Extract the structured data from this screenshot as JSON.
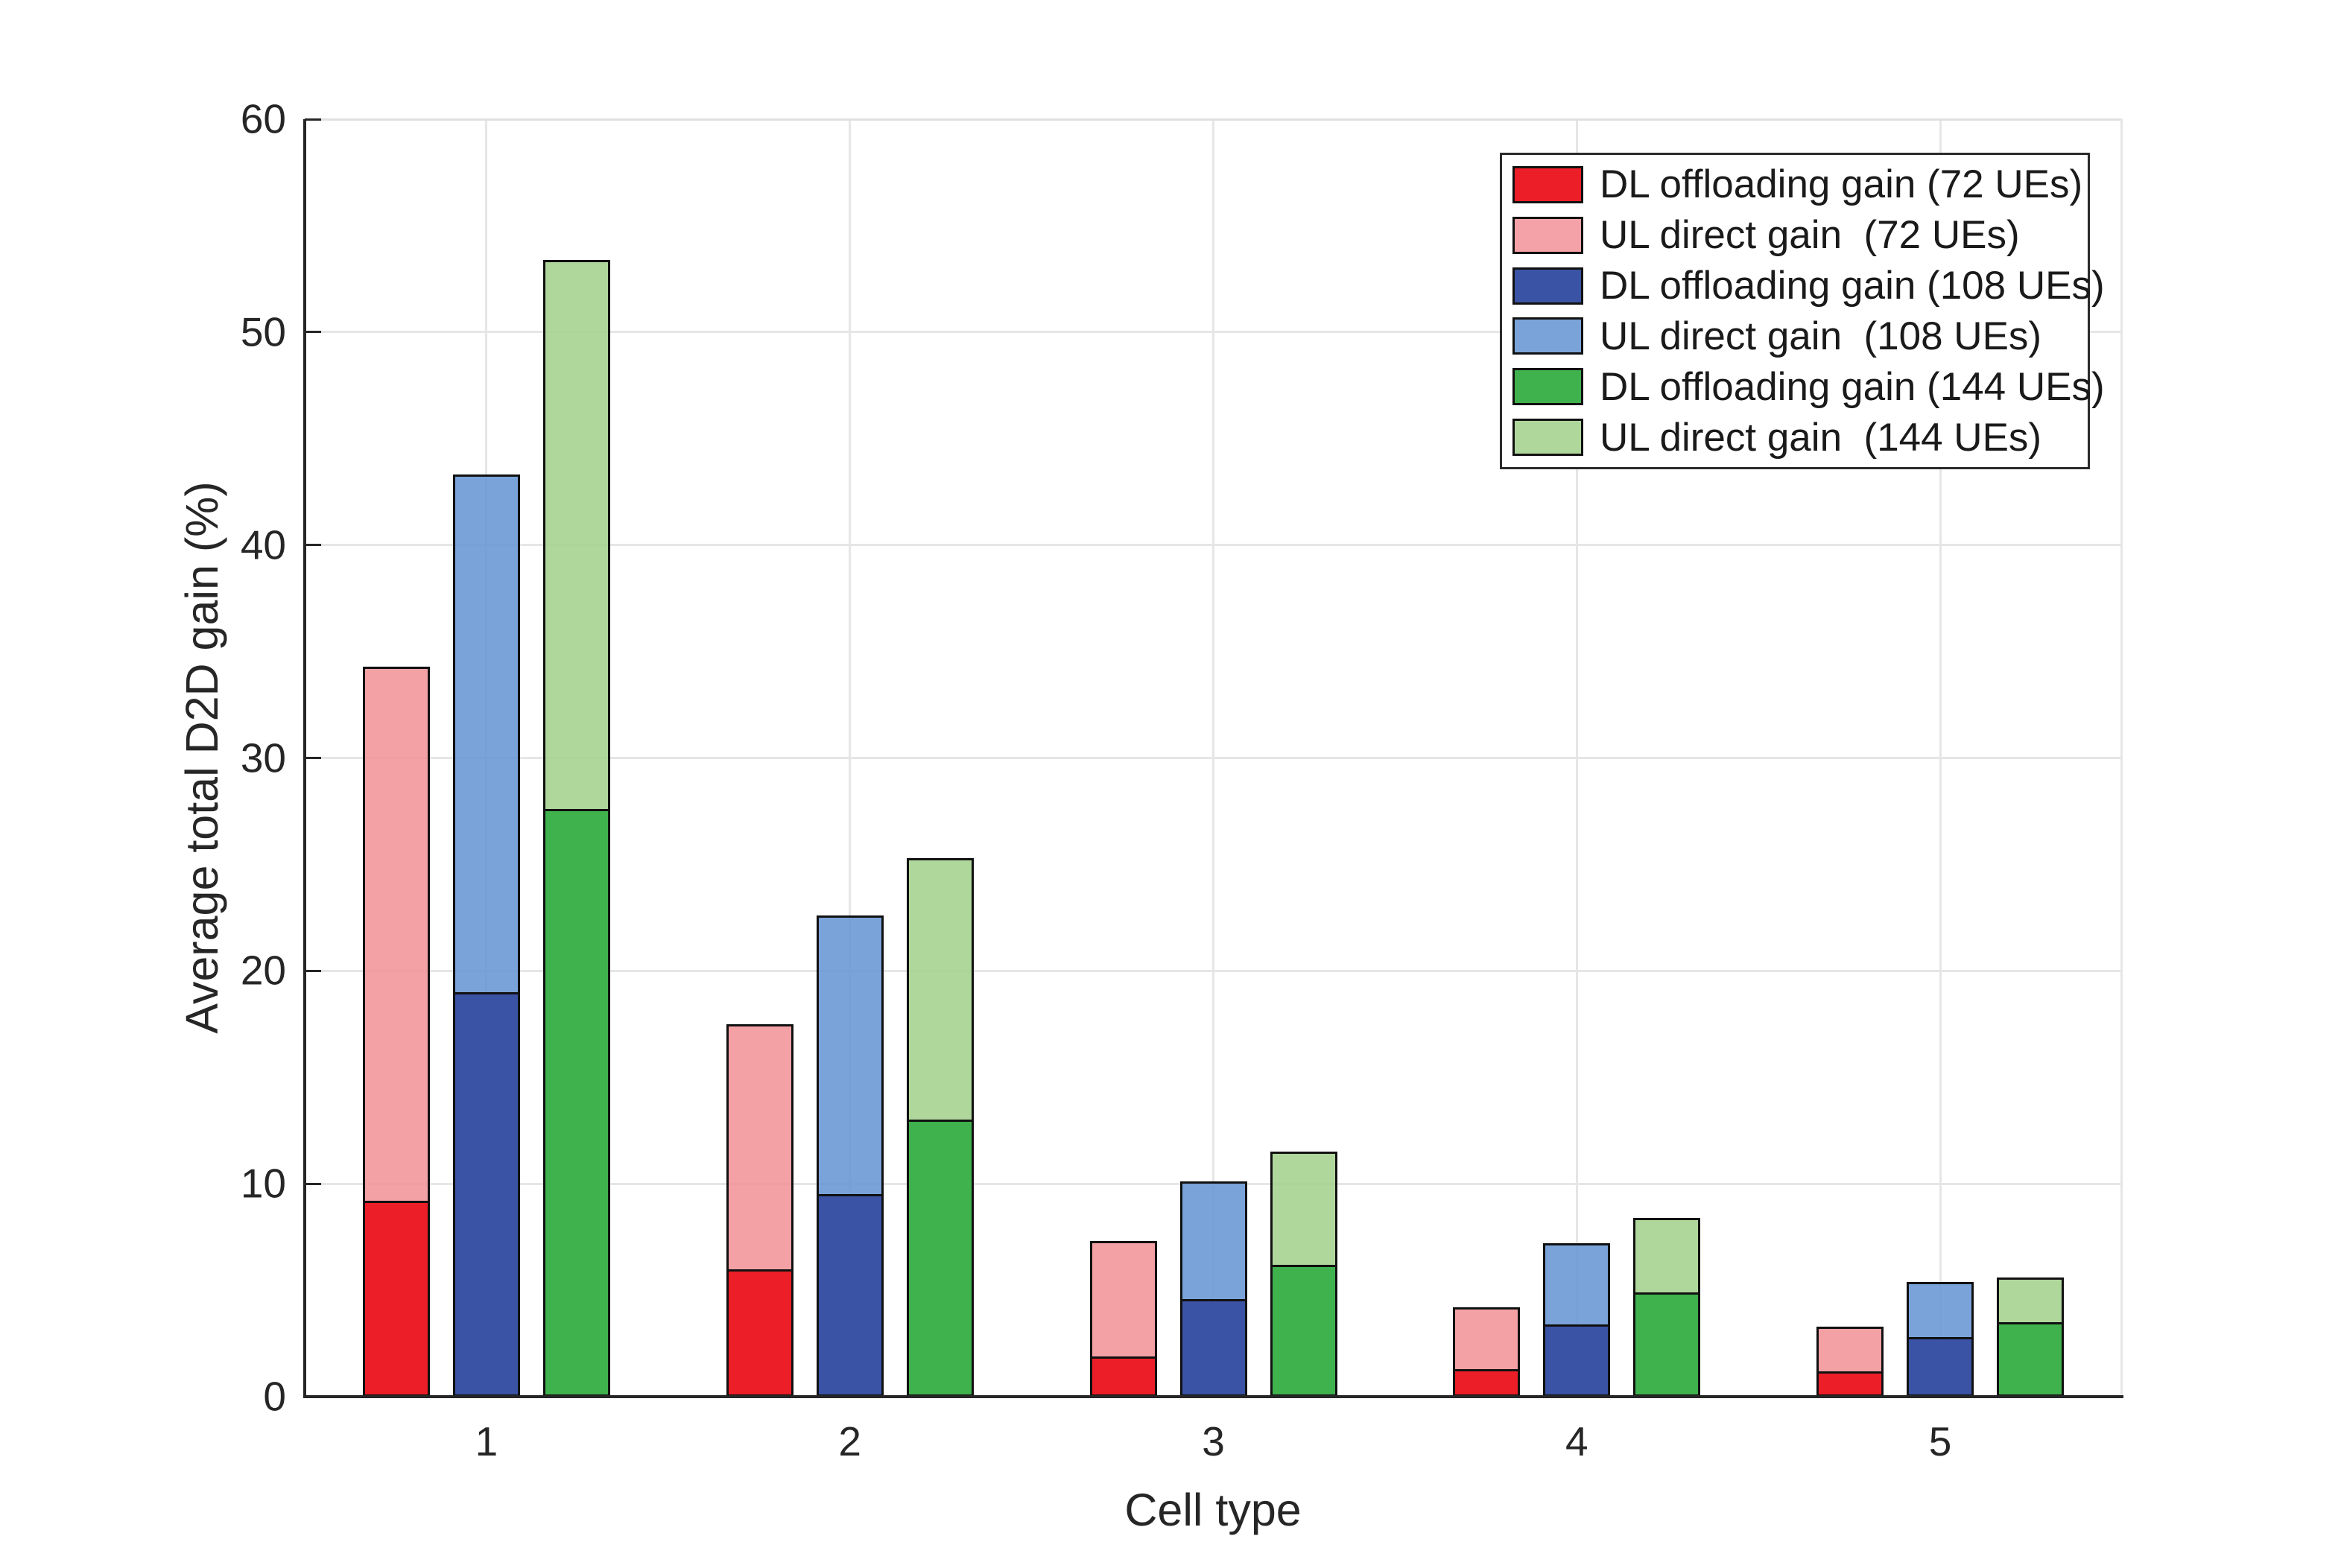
{
  "chart_data": {
    "type": "bar",
    "stacked": true,
    "title": "",
    "xlabel": "Cell type",
    "ylabel": "Average total D2D gain (%)",
    "categories": [
      "1",
      "2",
      "3",
      "4",
      "5"
    ],
    "ylim": [
      0,
      60
    ],
    "ytick_labels": [
      "0",
      "10",
      "20",
      "30",
      "40",
      "50",
      "60"
    ],
    "grid": true,
    "legend_position": "top-right",
    "series": [
      {
        "name": "DL offloading gain (72 UEs)",
        "stack": "72",
        "role": "base",
        "color": "#EC1E28",
        "values": [
          9.2,
          6.0,
          1.9,
          1.3,
          1.2
        ]
      },
      {
        "name": "UL direct gain  (72 UEs)",
        "stack": "72",
        "role": "top",
        "color": "#F4A1A7",
        "values": [
          25.1,
          11.5,
          5.4,
          2.9,
          2.1
        ]
      },
      {
        "name": "DL offloading gain (108 UEs)",
        "stack": "108",
        "role": "base",
        "color": "#3A53A5",
        "values": [
          19.0,
          9.5,
          4.6,
          3.4,
          2.8
        ]
      },
      {
        "name": "UL direct gain  (108 UEs)",
        "stack": "108",
        "role": "top",
        "color": "#7AA3D9",
        "values": [
          24.3,
          13.1,
          5.5,
          3.8,
          2.6
        ]
      },
      {
        "name": "DL offloading gain (144 UEs)",
        "stack": "144",
        "role": "base",
        "color": "#3FB14D",
        "values": [
          27.6,
          13.0,
          6.2,
          4.9,
          3.5
        ]
      },
      {
        "name": "UL direct gain  (144 UEs)",
        "stack": "144",
        "role": "top",
        "color": "#AFD79B",
        "values": [
          25.8,
          12.3,
          5.3,
          3.5,
          2.1
        ]
      }
    ],
    "stack_totals": {
      "72": [
        34.3,
        17.5,
        7.3,
        4.2,
        3.3
      ],
      "108": [
        43.3,
        22.6,
        10.1,
        7.2,
        5.4
      ],
      "144": [
        53.4,
        25.3,
        11.5,
        8.4,
        5.6
      ]
    }
  }
}
